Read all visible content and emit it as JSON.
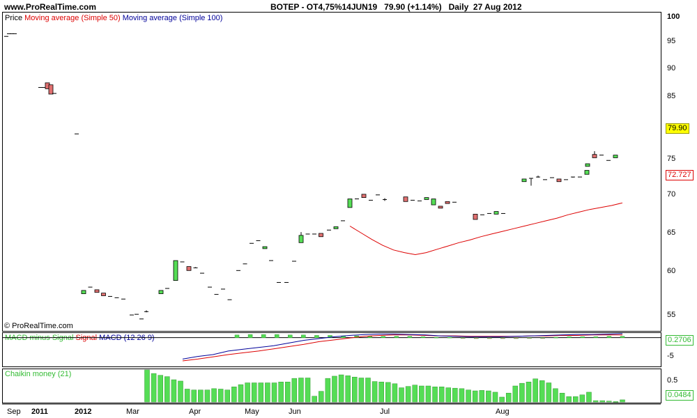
{
  "header": {
    "site": "www.ProRealTime.com",
    "title": "BOTEP - OT4,75%14JUN19   79.90 (+1.14%)   Daily  27 Aug 2012"
  },
  "price_panel": {
    "legend": {
      "price": "Price",
      "ma50": "Moving average (Simple 50)",
      "ma100": "Moving average (Simple 100)"
    },
    "copyright": "© ProRealTime.com",
    "y_ticks": [
      "100",
      "95",
      "90",
      "85",
      "75",
      "70",
      "65",
      "60",
      "55"
    ],
    "last_price": "79.90",
    "last_ma": "72.727"
  },
  "macd_panel": {
    "legend": {
      "hist": "MACD minus Signal",
      "signal": "Signal",
      "macd": "MACD (12 26 9)"
    },
    "y_ticks": [
      "-5"
    ],
    "last_value": "0.2706"
  },
  "chaikin_panel": {
    "legend": "Chaikin money (21)",
    "y_ticks": [
      "0.5"
    ],
    "last_value": "0.0484"
  },
  "x_axis": [
    {
      "label": "Sep",
      "bold": false
    },
    {
      "label": "2011",
      "bold": true
    },
    {
      "label": "2012",
      "bold": true
    },
    {
      "label": "Mar",
      "bold": false
    },
    {
      "label": "Apr",
      "bold": false
    },
    {
      "label": "May",
      "bold": false
    },
    {
      "label": "Jun",
      "bold": false
    },
    {
      "label": "Jul",
      "bold": false
    },
    {
      "label": "Aug",
      "bold": false
    }
  ],
  "colors": {
    "up": "#55dd55",
    "down": "#e07070",
    "ma50": "#dd0000",
    "ma100": "#000099",
    "last_price_bg": "#ffff00"
  },
  "chart_data": [
    {
      "type": "candlestick",
      "title": "BOTEP - OT4,75%14JUN19",
      "ylim": [
        53.5,
        101.5
      ],
      "series_candles": [
        [
          97.8,
          97.8,
          97.8,
          97.8
        ],
        [
          98.2,
          98.2,
          98.2,
          98.2
        ],
        [
          98.2,
          98.2,
          98.2,
          98.2
        ],
        [
          98.2,
          98.2,
          98.2,
          98.2
        ],
        [
          90.1,
          90.1,
          90.1,
          90.1
        ],
        [
          90.1,
          90.1,
          90.1,
          90.1
        ],
        [
          90.8,
          90.8,
          89.9,
          89.9
        ],
        [
          90.5,
          90.5,
          89.1,
          89.1
        ],
        [
          89.2,
          89.2,
          89.2,
          89.2
        ],
        [
          83.1,
          83.1,
          83.1,
          83.1
        ],
        [
          59,
          59.5,
          59,
          59.5
        ],
        [
          60,
          60,
          60,
          60
        ],
        [
          59.6,
          59.6,
          59.2,
          59.2
        ],
        [
          59.1,
          59.1,
          58.7,
          58.7
        ],
        [
          58.6,
          58.6,
          58.6,
          58.6
        ],
        [
          58.4,
          58.4,
          58.4,
          58.4
        ],
        [
          58.2,
          58.2,
          58.2,
          58.2
        ],
        [
          55.8,
          55.8,
          55.8,
          55.8
        ],
        [
          55.9,
          55.9,
          55.9,
          55.9
        ],
        [
          55.2,
          55.2,
          55.2,
          55.2
        ],
        [
          56.3,
          56.5,
          56.2,
          56.3
        ],
        [
          59,
          59.5,
          59,
          59.5
        ],
        [
          59.8,
          59.8,
          59.8,
          59.8
        ],
        [
          61,
          64,
          61,
          64
        ],
        [
          63.8,
          63.8,
          63.8,
          63.8
        ],
        [
          63.1,
          63.1,
          62.5,
          62.5
        ],
        [
          62.9,
          63,
          62.9,
          62.9
        ],
        [
          62.1,
          62.1,
          62.1,
          62.1
        ],
        [
          60,
          60,
          60,
          60
        ],
        [
          58.9,
          58.9,
          58.9,
          58.9
        ],
        [
          59.7,
          59.7,
          59.7,
          59.7
        ],
        [
          58.1,
          58.1,
          58.1,
          58.1
        ],
        [
          62.5,
          62.5,
          62.5,
          62.5
        ],
        [
          63.5,
          63.5,
          63.5,
          63.5
        ],
        [
          66.6,
          66.6,
          66.6,
          66.6
        ],
        [
          67,
          67,
          67,
          67
        ],
        [
          65.8,
          66.1,
          65.8,
          66.1
        ],
        [
          64,
          64,
          64,
          64
        ],
        [
          60.7,
          60.7,
          60.7,
          60.7
        ],
        [
          60.7,
          60.7,
          60.7,
          60.7
        ],
        [
          63.9,
          63.9,
          63.9,
          63.9
        ],
        [
          66.7,
          68.3,
          66.7,
          67.8
        ],
        [
          68,
          68,
          68,
          68
        ],
        [
          68,
          68,
          68,
          68
        ],
        [
          68.1,
          68.1,
          67.6,
          67.6
        ],
        [
          68.6,
          68.6,
          68.6,
          68.6
        ],
        [
          68.8,
          69.1,
          68.8,
          69.1
        ],
        [
          70,
          70,
          70,
          70
        ],
        [
          72,
          73.3,
          72,
          73.3
        ],
        [
          73.3,
          73.3,
          73.3,
          73.3
        ],
        [
          74,
          74,
          73.5,
          73.5
        ],
        [
          73.1,
          73.1,
          73.1,
          73.1
        ],
        [
          73.9,
          73.9,
          73.9,
          73.9
        ],
        [
          73.2,
          73.4,
          73,
          73.2
        ],
        [
          73.6,
          73.6,
          72.9,
          72.9
        ],
        [
          73.1,
          73.1,
          73.1,
          73.1
        ],
        [
          73,
          73,
          73,
          73
        ],
        [
          73.2,
          73.5,
          73.2,
          73.5
        ],
        [
          72.4,
          73.3,
          72.4,
          73.3
        ],
        [
          72.2,
          72.2,
          71.9,
          71.9
        ],
        [
          72.9,
          72.9,
          72.6,
          72.6
        ],
        [
          72.8,
          72.8,
          72.8,
          72.8
        ],
        [
          71,
          71,
          70.2,
          70.2
        ],
        [
          70.9,
          70.9,
          70.9,
          70.9
        ],
        [
          71.1,
          71.1,
          71.1,
          71.1
        ],
        [
          71,
          71.4,
          71,
          71.4
        ],
        [
          71.1,
          71.1,
          71.1,
          71.1
        ],
        [
          75.9,
          76.3,
          75.9,
          76.3
        ],
        [
          76.4,
          76.4,
          75.3,
          76.4
        ],
        [
          76.5,
          76.8,
          76.5,
          76.6
        ],
        [
          76.2,
          76.2,
          76.2,
          76.2
        ],
        [
          76.5,
          76.5,
          76.5,
          76.5
        ],
        [
          76.3,
          76.3,
          75.9,
          75.9
        ],
        [
          76.2,
          76.2,
          76.2,
          76.2
        ],
        [
          76.6,
          76.6,
          76.5,
          76.5
        ],
        [
          76.6,
          76.6,
          76.6,
          76.6
        ],
        [
          77,
          77.6,
          77,
          77.6
        ],
        [
          78.2,
          78.6,
          78.2,
          78.6
        ],
        [
          80,
          80.5,
          79.5,
          79.5
        ],
        [
          79.9,
          79.9,
          79.9,
          79.9
        ],
        [
          79.1,
          79.1,
          79.1,
          79.1
        ],
        [
          79.5,
          79.9,
          79.5,
          79.9
        ]
      ],
      "series_ma50": [
        69.2,
        68.2,
        67.2,
        66.3,
        65.6,
        65.2,
        64.9,
        65.2,
        65.7,
        66.2,
        66.7,
        67.1,
        67.6,
        68,
        68.4,
        68.8,
        69.2,
        69.6,
        70,
        70.4,
        70.9,
        71.3,
        71.7,
        72,
        72.3,
        72.7
      ],
      "last_close": 79.9,
      "last_ma50": 72.727
    },
    {
      "type": "macd",
      "title": "MACD (12 26 9)",
      "ylim": [
        -6.3,
        1.2
      ],
      "histogram": [
        0.6,
        0.7,
        0.7,
        0.7,
        0.6,
        0.6,
        0.5,
        0.5,
        0.4,
        0.4,
        0.3,
        0.3,
        0.3,
        0.3,
        0.2,
        0.1,
        0.1,
        -0.1,
        -0.2,
        -0.2,
        -0.2,
        -0.2,
        -0.1,
        -0.1,
        0.1,
        0.2,
        0.2,
        0.2,
        0.3,
        0.3
      ],
      "macd": [
        -4.8,
        -4.2,
        -3.8,
        -3,
        -2.6,
        -2.2,
        -1.8,
        -1.2,
        -0.6,
        -0.2,
        0.2,
        0.5,
        0.7,
        0.8,
        0.8,
        0.7,
        0.6,
        0.4,
        0.3,
        0.2,
        0.2,
        0.2,
        0.3,
        0.4,
        0.5,
        0.6,
        0.7,
        0.7,
        0.8,
        0.9
      ],
      "signal": [
        -5.2,
        -4.8,
        -4.3,
        -3.8,
        -3.4,
        -3,
        -2.5,
        -2,
        -1.5,
        -0.9,
        -0.5,
        -0.1,
        0.3,
        0.5,
        0.6,
        0.6,
        0.5,
        0.4,
        0.4,
        0.3,
        0.3,
        0.3,
        0.3,
        0.4,
        0.4,
        0.5,
        0.5,
        0.6,
        0.6,
        0.6
      ],
      "last_value": 0.2706
    },
    {
      "type": "bar",
      "title": "Chaikin money (21)",
      "ylim": [
        0,
        0.72
      ],
      "values": [
        0.72,
        0.64,
        0.6,
        0.57,
        0.5,
        0.47,
        0.29,
        0.27,
        0.27,
        0.27,
        0.3,
        0.29,
        0.27,
        0.34,
        0.39,
        0.43,
        0.43,
        0.43,
        0.43,
        0.43,
        0.45,
        0.45,
        0.53,
        0.54,
        0.54,
        0.13,
        0.24,
        0.53,
        0.58,
        0.61,
        0.59,
        0.56,
        0.54,
        0.54,
        0.46,
        0.45,
        0.44,
        0.41,
        0.32,
        0.35,
        0.38,
        0.36,
        0.36,
        0.34,
        0.34,
        0.32,
        0.31,
        0.3,
        0.27,
        0.25,
        0.26,
        0.25,
        0.22,
        0.11,
        0.2,
        0.36,
        0.42,
        0.45,
        0.52,
        0.48,
        0.43,
        0.3,
        0.2,
        0.12,
        0.12,
        0.16,
        0.22,
        0.03,
        0.03,
        0.02,
        0.01,
        0.0484
      ],
      "last_value": 0.0484
    }
  ]
}
